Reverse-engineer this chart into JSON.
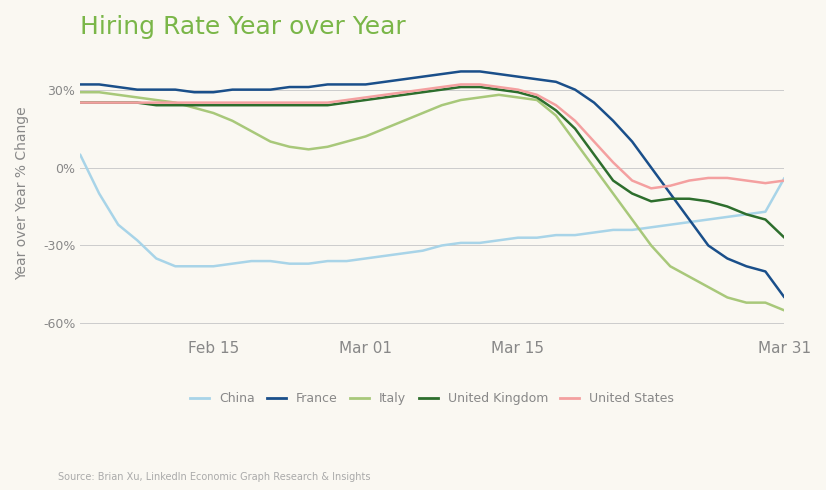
{
  "title": "Hiring Rate Year over Year",
  "ylabel": "Year over Year % Change",
  "source": "Source: Brian Xu, LinkedIn Economic Graph Research & Insights",
  "background_color": "#faf8f2",
  "title_color": "#7ab648",
  "ylabel_color": "#555555",
  "yticks": [
    -60,
    -30,
    0,
    30
  ],
  "ytick_labels": [
    "-60%",
    "-30%",
    "0%",
    "30%"
  ],
  "xtick_labels": [
    "Feb 15",
    "Mar 01",
    "Mar 15",
    "Mar 31"
  ],
  "grid_color": "#cccccc",
  "series": {
    "China": {
      "color": "#a8d4e8",
      "x": [
        0,
        2,
        4,
        6,
        8,
        10,
        12,
        14,
        16,
        18,
        20,
        22,
        24,
        26,
        28,
        30,
        32,
        34,
        36,
        38,
        40,
        42,
        44,
        46,
        48,
        50,
        52,
        54,
        56,
        58,
        60,
        62,
        64,
        66,
        68,
        70,
        72,
        74
      ],
      "y": [
        5,
        -10,
        -22,
        -28,
        -35,
        -38,
        -38,
        -38,
        -37,
        -36,
        -36,
        -37,
        -37,
        -36,
        -36,
        -35,
        -34,
        -33,
        -32,
        -30,
        -29,
        -29,
        -28,
        -27,
        -27,
        -26,
        -26,
        -25,
        -24,
        -24,
        -23,
        -22,
        -21,
        -20,
        -19,
        -18,
        -17,
        -4
      ]
    },
    "France": {
      "color": "#1a4f8a",
      "x": [
        0,
        2,
        4,
        6,
        8,
        10,
        12,
        14,
        16,
        18,
        20,
        22,
        24,
        26,
        28,
        30,
        32,
        34,
        36,
        38,
        40,
        42,
        44,
        46,
        48,
        50,
        52,
        54,
        56,
        58,
        60,
        62,
        64,
        66,
        68,
        70,
        72,
        74
      ],
      "y": [
        32,
        32,
        31,
        30,
        30,
        30,
        29,
        29,
        30,
        30,
        30,
        31,
        31,
        32,
        32,
        32,
        33,
        34,
        35,
        36,
        37,
        37,
        36,
        35,
        34,
        33,
        30,
        25,
        18,
        10,
        0,
        -10,
        -20,
        -30,
        -35,
        -38,
        -40,
        -50
      ]
    },
    "Italy": {
      "color": "#a8c87a",
      "x": [
        0,
        2,
        4,
        6,
        8,
        10,
        12,
        14,
        16,
        18,
        20,
        22,
        24,
        26,
        28,
        30,
        32,
        34,
        36,
        38,
        40,
        42,
        44,
        46,
        48,
        50,
        52,
        54,
        56,
        58,
        60,
        62,
        64,
        66,
        68,
        70,
        72,
        74
      ],
      "y": [
        29,
        29,
        28,
        27,
        26,
        25,
        23,
        21,
        18,
        14,
        10,
        8,
        7,
        8,
        10,
        12,
        15,
        18,
        21,
        24,
        26,
        27,
        28,
        27,
        26,
        20,
        10,
        0,
        -10,
        -20,
        -30,
        -38,
        -42,
        -46,
        -50,
        -52,
        -52,
        -55
      ]
    },
    "United Kingdom": {
      "color": "#2d6e2d",
      "x": [
        0,
        2,
        4,
        6,
        8,
        10,
        12,
        14,
        16,
        18,
        20,
        22,
        24,
        26,
        28,
        30,
        32,
        34,
        36,
        38,
        40,
        42,
        44,
        46,
        48,
        50,
        52,
        54,
        56,
        58,
        60,
        62,
        64,
        66,
        68,
        70,
        72,
        74
      ],
      "y": [
        25,
        25,
        25,
        25,
        24,
        24,
        24,
        24,
        24,
        24,
        24,
        24,
        24,
        24,
        25,
        26,
        27,
        28,
        29,
        30,
        31,
        31,
        30,
        29,
        27,
        22,
        15,
        5,
        -5,
        -10,
        -13,
        -12,
        -12,
        -13,
        -15,
        -18,
        -20,
        -27
      ]
    },
    "United States": {
      "color": "#f4a0a0",
      "x": [
        0,
        2,
        4,
        6,
        8,
        10,
        12,
        14,
        16,
        18,
        20,
        22,
        24,
        26,
        28,
        30,
        32,
        34,
        36,
        38,
        40,
        42,
        44,
        46,
        48,
        50,
        52,
        54,
        56,
        58,
        60,
        62,
        64,
        66,
        68,
        70,
        72,
        74
      ],
      "y": [
        25,
        25,
        25,
        25,
        25,
        25,
        25,
        25,
        25,
        25,
        25,
        25,
        25,
        25,
        26,
        27,
        28,
        29,
        30,
        31,
        32,
        32,
        31,
        30,
        28,
        24,
        18,
        10,
        2,
        -5,
        -8,
        -7,
        -5,
        -4,
        -4,
        -5,
        -6,
        -5
      ]
    }
  },
  "legend_order": [
    "China",
    "France",
    "Italy",
    "United Kingdom",
    "United States"
  ],
  "xtick_positions": [
    14,
    30,
    46,
    74
  ]
}
